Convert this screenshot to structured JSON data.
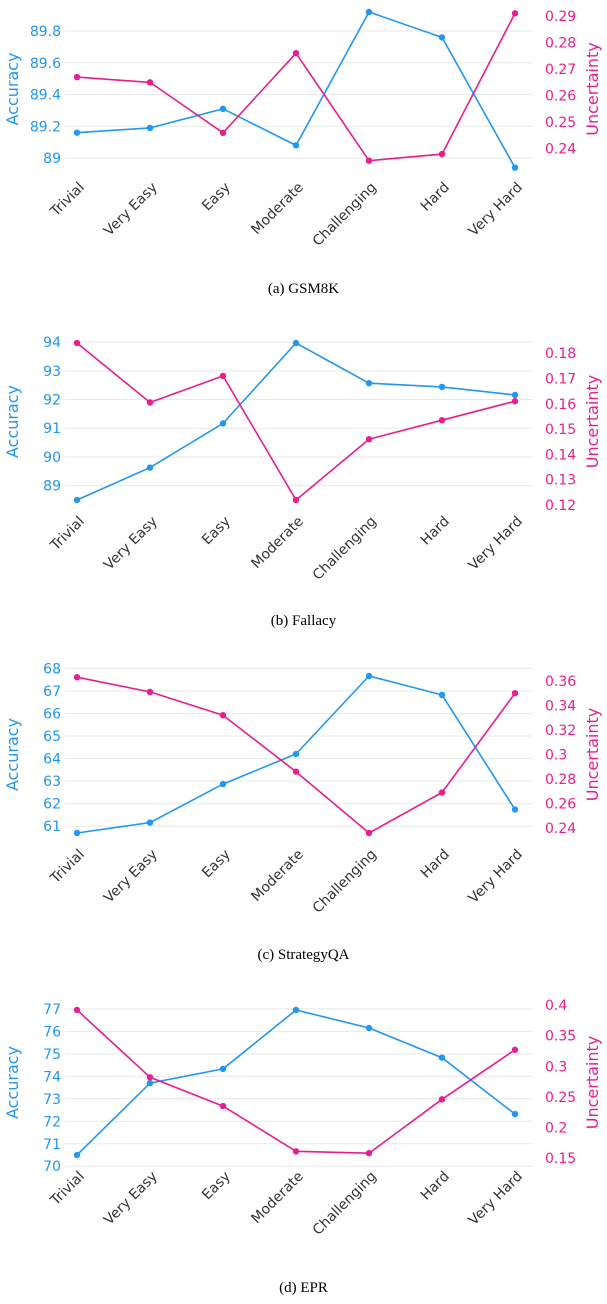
{
  "colors": {
    "accuracy": "#2196F3",
    "uncertainty": "#E91E8C",
    "grid": "#e9e9e9"
  },
  "chart_data": [
    {
      "type": "line",
      "caption": "(a) GSM8K",
      "categories": [
        "Trivial",
        "Very Easy",
        "Easy",
        "Moderate",
        "Challenging",
        "Hard",
        "Very Hard"
      ],
      "ylabel": "Accuracy",
      "y2label": "Uncertainty",
      "ylim": [
        88.95,
        89.92
      ],
      "y2lim": [
        0.2335,
        0.2915
      ],
      "yticks": [
        89,
        89.2,
        89.4,
        89.6,
        89.8
      ],
      "ytick_labels": [
        "89",
        "89.2",
        "89.4",
        "89.6",
        "89.8"
      ],
      "y2ticks": [
        0.24,
        0.25,
        0.26,
        0.27,
        0.28,
        0.29
      ],
      "y2tick_labels": [
        "0.24",
        "0.25",
        "0.26",
        "0.27",
        "0.28",
        "0.29"
      ],
      "series": [
        {
          "name": "Accuracy",
          "axis": "left",
          "values": [
            89.16,
            89.19,
            89.31,
            89.08,
            89.92,
            89.76,
            88.94
          ]
        },
        {
          "name": "Uncertainty",
          "axis": "right",
          "values": [
            0.267,
            0.265,
            0.246,
            0.276,
            0.2355,
            0.238,
            0.291
          ]
        }
      ],
      "grid": true
    },
    {
      "type": "line",
      "caption": "(b) Fallacy",
      "categories": [
        "Trivial",
        "Very Easy",
        "Easy",
        "Moderate",
        "Challenging",
        "Hard",
        "Very Hard"
      ],
      "ylabel": "Accuracy",
      "y2label": "Uncertainty",
      "ylim": [
        88.5,
        93.97
      ],
      "y2lim": [
        0.122,
        0.184
      ],
      "yticks": [
        89,
        90,
        91,
        92,
        93,
        94
      ],
      "ytick_labels": [
        "89",
        "90",
        "91",
        "92",
        "93",
        "94"
      ],
      "y2ticks": [
        0.12,
        0.13,
        0.14,
        0.15,
        0.16,
        0.17,
        0.18
      ],
      "y2tick_labels": [
        "0.12",
        "0.13",
        "0.14",
        "0.15",
        "0.16",
        "0.17",
        "0.18"
      ],
      "series": [
        {
          "name": "Accuracy",
          "axis": "left",
          "values": [
            88.5,
            89.63,
            91.17,
            93.97,
            92.57,
            92.44,
            92.16
          ]
        },
        {
          "name": "Uncertainty",
          "axis": "right",
          "values": [
            0.184,
            0.1605,
            0.171,
            0.122,
            0.146,
            0.1535,
            0.161
          ]
        }
      ],
      "grid": true
    },
    {
      "type": "line",
      "caption": "(c) StrategyQA",
      "categories": [
        "Trivial",
        "Very Easy",
        "Easy",
        "Moderate",
        "Challenging",
        "Hard",
        "Very Hard"
      ],
      "ylabel": "Accuracy",
      "y2label": "Uncertainty",
      "ylim": [
        60.7,
        67.66
      ],
      "y2lim": [
        0.236,
        0.364
      ],
      "yticks": [
        61,
        62,
        63,
        64,
        65,
        66,
        67,
        68
      ],
      "ytick_labels": [
        "61",
        "62",
        "63",
        "64",
        "65",
        "66",
        "67",
        "68"
      ],
      "y2ticks": [
        0.24,
        0.26,
        0.28,
        0.3,
        0.32,
        0.34,
        0.36
      ],
      "y2tick_labels": [
        "0.24",
        "0.26",
        "0.28",
        "0.3",
        "0.32",
        "0.34",
        "0.36"
      ],
      "series": [
        {
          "name": "Accuracy",
          "axis": "left",
          "values": [
            60.7,
            61.16,
            62.87,
            64.2,
            67.66,
            66.82,
            61.74
          ]
        },
        {
          "name": "Uncertainty",
          "axis": "right",
          "values": [
            0.363,
            0.351,
            0.332,
            0.286,
            0.236,
            0.269,
            0.35
          ]
        }
      ],
      "grid": true
    },
    {
      "type": "line",
      "caption": "(d) EPR",
      "categories": [
        "Trivial",
        "Very Easy",
        "Easy",
        "Moderate",
        "Challenging",
        "Hard",
        "Very Hard"
      ],
      "ylabel": "Accuracy",
      "y2label": "Uncertainty",
      "ylim": [
        70.5,
        76.95
      ],
      "y2lim": [
        0.155,
        0.392
      ],
      "yticks": [
        70,
        71,
        72,
        73,
        74,
        75,
        76,
        77
      ],
      "ytick_labels": [
        "70",
        "71",
        "72",
        "73",
        "74",
        "75",
        "76",
        "77"
      ],
      "y2ticks": [
        0.15,
        0.2,
        0.25,
        0.3,
        0.35,
        0.4
      ],
      "y2tick_labels": [
        "0.15",
        "0.2",
        "0.25",
        "0.3",
        "0.35",
        "0.4"
      ],
      "series": [
        {
          "name": "Accuracy",
          "axis": "left",
          "values": [
            70.5,
            73.7,
            74.33,
            76.95,
            76.15,
            74.83,
            72.32
          ]
        },
        {
          "name": "Uncertainty",
          "axis": "right",
          "values": [
            0.392,
            0.282,
            0.235,
            0.161,
            0.158,
            0.246,
            0.327
          ]
        }
      ],
      "grid": true
    }
  ]
}
